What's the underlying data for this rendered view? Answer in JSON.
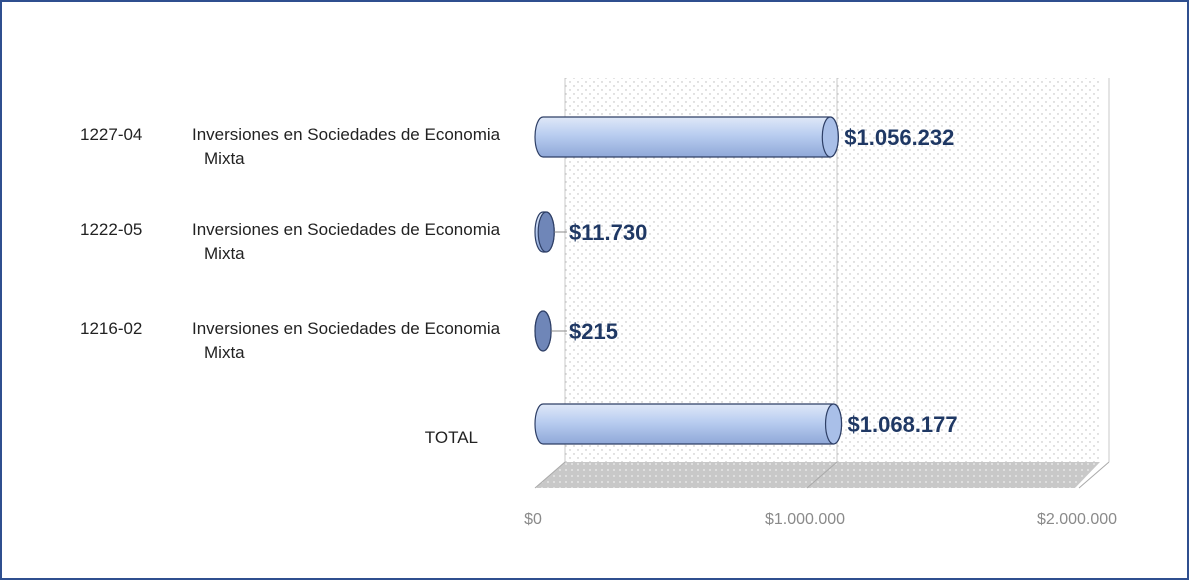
{
  "chart_data": {
    "type": "bar3d_horizontal",
    "codes": [
      "1227-04",
      "1222-05",
      "1216-02",
      null
    ],
    "categories": [
      "Inversiones en Sociedades de Economia Mixta",
      "Inversiones en Sociedades de Economia Mixta",
      "Inversiones en Sociedades de Economia Mixta",
      "TOTAL"
    ],
    "values": [
      1056232,
      11730,
      215,
      1068177
    ],
    "value_labels": [
      "$1.056.232",
      "$11.730",
      "$215",
      "$1.068.177"
    ],
    "color": "#b9cdf0",
    "xlim": [
      0,
      2000000
    ],
    "xticks": [
      {
        "value": 0,
        "label": "$0"
      },
      {
        "value": 1000000,
        "label": "$1.000.000"
      },
      {
        "value": 2000000,
        "label": "$2.000.000"
      }
    ],
    "grid": true
  }
}
